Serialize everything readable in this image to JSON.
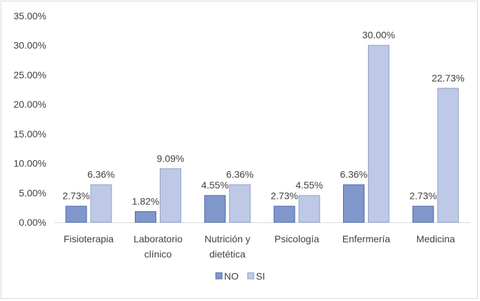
{
  "chart_data": {
    "type": "bar",
    "categories": [
      [
        "Fisioterapia"
      ],
      [
        "Laboratorio",
        "clínico"
      ],
      [
        "Nutrición y",
        "dietética"
      ],
      [
        "Psicología"
      ],
      [
        "Enfermería"
      ],
      [
        "Medicina"
      ]
    ],
    "series": [
      {
        "name": "NO",
        "color": "#7f97cb",
        "values": [
          2.73,
          1.82,
          4.55,
          2.73,
          6.36,
          2.73
        ],
        "labels": [
          "2.73%",
          "1.82%",
          "4.55%",
          "2.73%",
          "6.36%",
          "2.73%"
        ]
      },
      {
        "name": "SI",
        "color": "#bdc9e6",
        "values": [
          6.36,
          9.09,
          6.36,
          4.55,
          30.0,
          22.73
        ],
        "labels": [
          "6.36%",
          "9.09%",
          "6.36%",
          "4.55%",
          "30.00%",
          "22.73%"
        ]
      }
    ],
    "y_ticks": [
      0,
      5,
      10,
      15,
      20,
      25,
      30,
      35
    ],
    "y_tick_labels": [
      "0.00%",
      "5.00%",
      "10.00%",
      "15.00%",
      "20.00%",
      "25.00%",
      "30.00%",
      "35.00%"
    ],
    "ylim": [
      0,
      35
    ],
    "grid": false,
    "legend_position": "bottom",
    "title": "",
    "xlabel": "",
    "ylabel": ""
  }
}
